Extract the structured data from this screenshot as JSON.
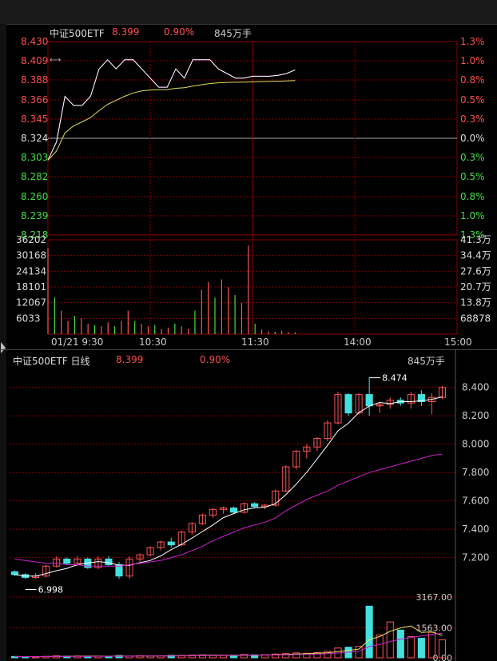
{
  "intraday": {
    "name": "中证500ETF",
    "price": "8.399",
    "change_pct": "0.90%",
    "volume": "845万手",
    "price_ticks_up": [
      "8.430",
      "8.409",
      "8.388",
      "8.366",
      "8.345"
    ],
    "price_tick_mid": "8.324",
    "price_ticks_down": [
      "8.303",
      "8.282",
      "8.260",
      "8.239",
      "8.218"
    ],
    "pct_ticks_up": [
      "1.3%",
      "1.0%",
      "0.8%",
      "0.5%",
      "0.3%"
    ],
    "pct_tick_mid": "0.0%",
    "pct_ticks_down": [
      "0.3%",
      "0.5%",
      "0.8%",
      "1.0%",
      "1.3%"
    ],
    "vol_ticks_left": [
      "36202",
      "30168",
      "24134",
      "18101",
      "12067",
      "6033"
    ],
    "vol_ticks_right": [
      "41.3万",
      "34.4万",
      "27.6万",
      "20.7万",
      "13.8万",
      "68878"
    ],
    "time_labels": [
      "01/21 9:30",
      "10:30",
      "11:30",
      "14:00",
      "15:00"
    ]
  },
  "daily": {
    "name": "中证500ETF 日线",
    "price": "8.399",
    "change_pct": "0.90%",
    "volume": "845万手",
    "price_ticks": [
      "8.400",
      "8.200",
      "8.000",
      "7.800",
      "7.600",
      "7.400",
      "7.200"
    ],
    "high_label": "8.474",
    "low_label": "6.998",
    "vol_ticks": [
      "3167.00",
      "1563.00",
      "0.00"
    ]
  },
  "colors": {
    "up": "#ff5555",
    "down": "#44e0e0",
    "price_line": "#ffffff",
    "avg_line": "#e0e060",
    "ma_slow": "#cc22cc",
    "grid": "#8a0000",
    "text_red": "#ff4d4d",
    "text_green": "#44dd44"
  },
  "chart_data": [
    {
      "type": "line",
      "title": "中证500ETF",
      "x_range": [
        "9:30",
        "15:00"
      ],
      "ylim": [
        8.218,
        8.43
      ],
      "series": [
        {
          "name": "",
          "x": [
            "9:30",
            "9:35",
            "9:40",
            "9:45",
            "9:50",
            "9:55",
            "10:00",
            "10:05",
            "10:10",
            "10:15",
            "10:20",
            "10:25",
            "10:30",
            "10:35",
            "10:40",
            "10:45",
            "10:50",
            "10:55",
            "11:00",
            "11:05",
            "11:10",
            "11:15",
            "11:20",
            "11:25",
            "11:30",
            "13:05",
            "13:10",
            "13:15",
            "13:20",
            "13:25"
          ],
          "y": [
            8.3,
            8.32,
            8.37,
            8.36,
            8.36,
            8.37,
            8.4,
            8.41,
            8.4,
            8.41,
            8.41,
            8.4,
            8.39,
            8.38,
            8.38,
            8.4,
            8.39,
            8.41,
            8.41,
            8.41,
            8.4,
            8.395,
            8.39,
            8.39,
            8.392,
            8.392,
            8.392,
            8.393,
            8.395,
            8.399
          ]
        }
      ]
    },
    {
      "type": "bar",
      "title": "",
      "x_range": [
        "9:30",
        "15:00"
      ],
      "ylim": [
        0,
        36202
      ],
      "series": [
        {
          "name": "",
          "values": [
            33000,
            14000,
            9000,
            5000,
            7000,
            6000,
            4000,
            3500,
            3000,
            4500,
            3000,
            5000,
            9000,
            5000,
            4000,
            3000,
            3500,
            2000,
            2500,
            4000,
            3000,
            2000,
            9000,
            17000,
            20000,
            14000,
            21000,
            18000,
            15000,
            12000,
            34000,
            4000,
            1800,
            1000,
            900,
            1200,
            800,
            600
          ]
        }
      ]
    },
    {
      "type": "candlestick",
      "title": "中证500ETF 日线",
      "ylim": [
        6.95,
        8.5
      ],
      "series": [
        {
          "name": "",
          "ohlc": [
            [
              7.1,
              7.11,
              7.07,
              7.08
            ],
            [
              7.08,
              7.09,
              7.05,
              7.06
            ],
            [
              7.06,
              7.09,
              7.05,
              7.07
            ],
            [
              7.07,
              7.15,
              7.06,
              7.14
            ],
            [
              7.14,
              7.21,
              7.13,
              7.19
            ],
            [
              7.19,
              7.2,
              7.15,
              7.16
            ],
            [
              7.16,
              7.21,
              7.14,
              7.19
            ],
            [
              7.19,
              7.2,
              7.12,
              7.13
            ],
            [
              7.13,
              7.21,
              7.12,
              7.19
            ],
            [
              7.19,
              7.21,
              7.14,
              7.15
            ],
            [
              7.15,
              7.17,
              7.05,
              7.07
            ],
            [
              7.07,
              7.21,
              7.05,
              7.19
            ],
            [
              7.19,
              7.23,
              7.17,
              7.22
            ],
            [
              7.22,
              7.28,
              7.21,
              7.27
            ],
            [
              7.27,
              7.32,
              7.25,
              7.31
            ],
            [
              7.31,
              7.34,
              7.27,
              7.29
            ],
            [
              7.29,
              7.39,
              7.28,
              7.38
            ],
            [
              7.38,
              7.45,
              7.36,
              7.44
            ],
            [
              7.44,
              7.51,
              7.43,
              7.5
            ],
            [
              7.5,
              7.55,
              7.48,
              7.54
            ],
            [
              7.54,
              7.56,
              7.51,
              7.55
            ],
            [
              7.55,
              7.56,
              7.51,
              7.52
            ],
            [
              7.52,
              7.59,
              7.51,
              7.58
            ],
            [
              7.58,
              7.59,
              7.55,
              7.56
            ],
            [
              7.56,
              7.58,
              7.54,
              7.57
            ],
            [
              7.57,
              7.68,
              7.56,
              7.67
            ],
            [
              7.67,
              7.85,
              7.66,
              7.84
            ],
            [
              7.84,
              7.96,
              7.82,
              7.95
            ],
            [
              7.95,
              8.0,
              7.9,
              7.98
            ],
            [
              7.98,
              8.05,
              7.95,
              8.04
            ],
            [
              8.04,
              8.17,
              8.02,
              8.15
            ],
            [
              8.15,
              8.37,
              8.14,
              8.35
            ],
            [
              8.35,
              8.36,
              8.2,
              8.22
            ],
            [
              8.22,
              8.36,
              8.21,
              8.35
            ],
            [
              8.35,
              8.47,
              8.2,
              8.27
            ],
            [
              8.27,
              8.3,
              8.22,
              8.28
            ],
            [
              8.28,
              8.33,
              8.25,
              8.31
            ],
            [
              8.31,
              8.33,
              8.27,
              8.29
            ],
            [
              8.29,
              8.37,
              8.25,
              8.35
            ],
            [
              8.35,
              8.38,
              8.27,
              8.3
            ],
            [
              8.3,
              8.36,
              8.21,
              8.33
            ],
            [
              8.33,
              8.41,
              8.32,
              8.4
            ]
          ]
        },
        {
          "name": "",
          "values": [
            7.19,
            7.18,
            7.17,
            7.16,
            7.16,
            7.15,
            7.15,
            7.14,
            7.14,
            7.14,
            7.14,
            7.15,
            7.16,
            7.17,
            7.18,
            7.2,
            7.22,
            7.25,
            7.28,
            7.32,
            7.35,
            7.38,
            7.41,
            7.43,
            7.45,
            7.48,
            7.53,
            7.57,
            7.61,
            7.64,
            7.67,
            7.71,
            7.74,
            7.77,
            7.8,
            7.82,
            7.84,
            7.86,
            7.88,
            7.9,
            7.92,
            7.93
          ]
        }
      ]
    }
  ]
}
